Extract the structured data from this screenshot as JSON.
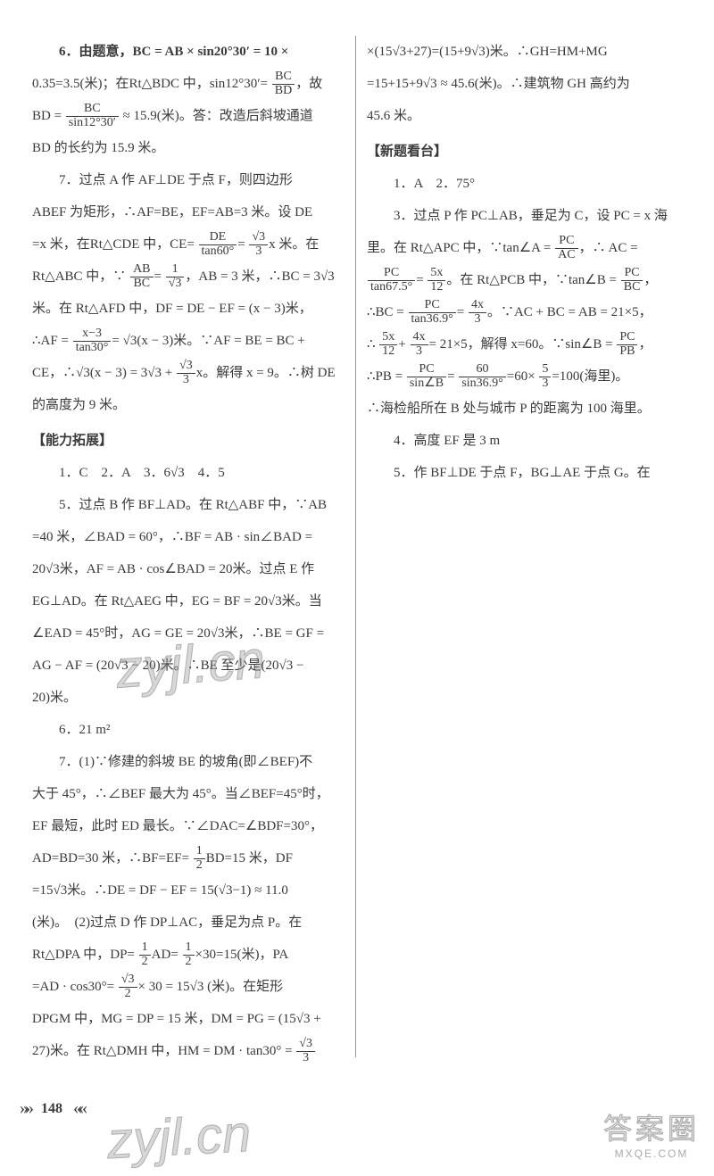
{
  "left": {
    "p6a": "6．由题意，BC = AB × sin20°30′ = 10 ×",
    "p6b": "0.35=3.5(米)；在Rt△BDC 中，sin12°30′=",
    "p6c": "，故",
    "p6d": "BD =",
    "p6e": " ≈ 15.9(米)。答：改造后斜坡通道",
    "p6f": "BD 的长约为 15.9 米。",
    "frac_BCBD_num": "BC",
    "frac_BCBD_den": "BD",
    "frac_BCsin_num": "BC",
    "frac_BCsin_den": "sin12°30′",
    "p7a": "7．过点 A 作 AF⊥DE 于点 F，则四边形",
    "p7b": "ABEF 为矩形，∴AF=BE，EF=AB=3 米。设 DE",
    "p7c": "=x 米，在Rt△CDE 中，CE=",
    "frac_DEtan60_num": "DE",
    "frac_DEtan60_den": "tan60°",
    "p7c2": "=",
    "frac_s3_3_num": "√3",
    "frac_s3_3_den": "3",
    "p7c3": "x 米。在",
    "p7d": "Rt△ABC 中，∵",
    "frac_ABBC_num": "AB",
    "frac_ABBC_den": "BC",
    "p7d2": "=",
    "frac_1s3_num": "1",
    "frac_1s3_den": "√3",
    "p7d3": "，AB = 3 米，∴BC = 3√3",
    "p7e": "米。在 Rt△AFD 中，DF = DE − EF = (x − 3)米，",
    "p7f": "∴AF =",
    "frac_x3tan30_num": "x−3",
    "frac_x3tan30_den": "tan30°",
    "p7f2": "= √3(x − 3)米。∵AF = BE = BC +",
    "p7g": "CE，∴√3(x − 3) = 3√3 +",
    "p7g2": "x。解得 x = 9。∴树 DE",
    "p7h": "的高度为 9 米。",
    "secA": "【能力拓展】",
    "ansA": "1．C　2．A　3．6√3　4．5",
    "p5a": "5．过点 B 作 BF⊥AD。在 Rt△ABF 中，∵AB",
    "p5b": "=40 米，∠BAD = 60°，∴BF = AB · sin∠BAD =",
    "p5c": "20√3米，AF = AB · cos∠BAD = 20米。过点 E 作",
    "p5d": "EG⊥AD。在 Rt△AEG 中，EG = BF = 20√3米。当",
    "p5e": "∠EAD = 45°时，AG = GE = 20√3米，∴BE = GF =",
    "p5f": "AG − AF = (20√3 − 20)米。∴BE 至少是(20√3 −",
    "p5g": "20)米。",
    "p6x": "6．21 m²",
    "p7x": "7．(1)∵修建的斜坡 BE 的坡角(即∠BEF)不",
    "p7y": "大于 45°，∴∠BEF 最大为 45°。当∠BEF=45°时，"
  },
  "right": {
    "r1": "EF 最短，此时 ED 最长。∵∠DAC=∠BDF=30°，",
    "r2a": "AD=BD=30 米，∴BF=EF=",
    "frac_12_num": "1",
    "frac_12_den": "2",
    "r2b": "BD=15 米，DF",
    "r3": "=15√3米。∴DE = DF − EF = 15(√3−1) ≈ 11.0",
    "r4": "(米)。　(2)过点 D 作 DP⊥AC，垂足为点 P。在",
    "r5a": "Rt△DPA 中，DP=",
    "r5b": "AD=",
    "r5c": "×30=15(米)，PA",
    "r6a": "=AD · cos30°=",
    "frac_s32_num": "√3",
    "frac_s32_den": "2",
    "r6b": "× 30 = 15√3 (米)。在矩形",
    "r7": "DPGM 中，MG = DP = 15 米，DM = PG = (15√3 +",
    "r8a": "27)米。在 Rt△DMH 中，HM = DM · tan30° =",
    "r9": "×(15√3+27)=(15+9√3)米。∴GH=HM+MG",
    "r10": "=15+15+9√3 ≈ 45.6(米)。∴建筑物 GH 高约为",
    "r11": "45.6 米。",
    "secB": "【新题看台】",
    "ansB": "1．A　2．75°",
    "q3a": "3．过点 P 作 PC⊥AB，垂足为 C，设 PC = x 海",
    "q3b": "里。在 Rt△APC 中，∵tan∠A =",
    "frac_PCAC_num": "PC",
    "frac_PCAC_den": "AC",
    "q3b2": "，∴ AC =",
    "q3c1_num": "PC",
    "q3c1_den": "tan67.5°",
    "q3c2": "=",
    "q3c3_num": "5x",
    "q3c3_den": "12",
    "q3c4": "。在 Rt△PCB 中，∵tan∠B =",
    "q3c5_num": "PC",
    "q3c5_den": "BC",
    "q3c6": "，",
    "q3d1": "∴BC =",
    "q3d2_num": "PC",
    "q3d2_den": "tan36.9°",
    "q3d3": "=",
    "q3d4_num": "4x",
    "q3d4_den": "3",
    "q3d5": "。∵AC + BC = AB = 21×5，",
    "q3e1": "∴",
    "q3e2": "+",
    "q3e3": "= 21×5，解得 x=60。∵sin∠B =",
    "q3e4_num": "PC",
    "q3e4_den": "PB",
    "q3e5": "，",
    "q3f1": "∴PB =",
    "q3f2_num": "PC",
    "q3f2_den": "sin∠B",
    "q3f3": "=",
    "q3f4_num": "60",
    "q3f4_den": "sin36.9°",
    "q3f5": "=60×",
    "q3f6_num": "5",
    "q3f6_den": "3",
    "q3f7": "=100(海里)。",
    "q3g": "∴海检船所在 B 处与城市 P 的距离为 100 海里。",
    "q4": "4．高度 EF 是 3 m",
    "q5": "5．作 BF⊥DE 于点 F，BG⊥AE 于点 G。在"
  },
  "footer": {
    "page": "148",
    "wm": "zyjl.cn",
    "brand_big": "答案圈",
    "brand_small": "MXQE.COM"
  }
}
